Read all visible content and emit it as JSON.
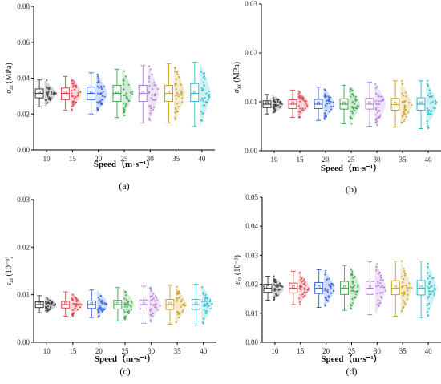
{
  "chart_data": [
    {
      "type": "box",
      "panel_label": "(a)",
      "xlabel": "Speed（m·s⁻¹）",
      "ylabel": "σzz (MPa)",
      "ylabel_symbol": "σ",
      "ylabel_sub": "zz",
      "ylabel_unit": " (MPa)",
      "categories": [
        "10",
        "15",
        "20",
        "25",
        "30",
        "35",
        "40"
      ],
      "ylim": [
        0,
        0.08
      ],
      "yticks": [
        "0.00",
        "0.02",
        "0.04",
        "0.06",
        "0.08"
      ],
      "boxes": [
        {
          "min": 0.024,
          "q1": 0.029,
          "median": 0.0315,
          "q3": 0.034,
          "max": 0.039
        },
        {
          "min": 0.022,
          "q1": 0.028,
          "median": 0.0315,
          "q3": 0.0345,
          "max": 0.041
        },
        {
          "min": 0.02,
          "q1": 0.028,
          "median": 0.0315,
          "q3": 0.035,
          "max": 0.043
        },
        {
          "min": 0.018,
          "q1": 0.027,
          "median": 0.0315,
          "q3": 0.036,
          "max": 0.045
        },
        {
          "min": 0.015,
          "q1": 0.027,
          "median": 0.0315,
          "q3": 0.036,
          "max": 0.047
        },
        {
          "min": 0.015,
          "q1": 0.027,
          "median": 0.0315,
          "q3": 0.036,
          "max": 0.048
        },
        {
          "min": 0.013,
          "q1": 0.027,
          "median": 0.0315,
          "q3": 0.037,
          "max": 0.049
        }
      ]
    },
    {
      "type": "box",
      "panel_label": "(b)",
      "xlabel": "Speed（m·s⁻¹）",
      "ylabel": "σxx (MPa)",
      "ylabel_symbol": "σ",
      "ylabel_sub": "xx",
      "ylabel_unit": " (MPa)",
      "categories": [
        "10",
        "15",
        "20",
        "25",
        "30",
        "35",
        "40"
      ],
      "ylim": [
        0,
        0.03
      ],
      "yticks": [
        "0.00",
        "0.01",
        "0.02",
        "0.03"
      ],
      "boxes": [
        {
          "min": 0.0075,
          "q1": 0.0088,
          "median": 0.0095,
          "q3": 0.0102,
          "max": 0.0115
        },
        {
          "min": 0.0068,
          "q1": 0.0086,
          "median": 0.0095,
          "q3": 0.0104,
          "max": 0.0124
        },
        {
          "min": 0.0062,
          "q1": 0.0086,
          "median": 0.0095,
          "q3": 0.0105,
          "max": 0.013
        },
        {
          "min": 0.0055,
          "q1": 0.0085,
          "median": 0.0095,
          "q3": 0.0106,
          "max": 0.0134
        },
        {
          "min": 0.005,
          "q1": 0.0085,
          "median": 0.0095,
          "q3": 0.0107,
          "max": 0.014
        },
        {
          "min": 0.0048,
          "q1": 0.0083,
          "median": 0.0094,
          "q3": 0.0107,
          "max": 0.0143
        },
        {
          "min": 0.0045,
          "q1": 0.0083,
          "median": 0.0095,
          "q3": 0.0108,
          "max": 0.0143
        }
      ]
    },
    {
      "type": "box",
      "panel_label": "(c)",
      "xlabel": "Speed（m·s⁻¹）",
      "ylabel": "εzz (10⁻³)",
      "ylabel_symbol": "ε",
      "ylabel_sub": "zz",
      "ylabel_unit": " (10⁻³)",
      "categories": [
        "10",
        "15",
        "20",
        "25",
        "30",
        "35",
        "40"
      ],
      "ylim": [
        0,
        0.03
      ],
      "yticks": [
        "0.00",
        "0.01",
        "0.02",
        "0.03"
      ],
      "boxes": [
        {
          "min": 0.0062,
          "q1": 0.0073,
          "median": 0.0079,
          "q3": 0.0085,
          "max": 0.0098
        },
        {
          "min": 0.0055,
          "q1": 0.0072,
          "median": 0.0079,
          "q3": 0.0086,
          "max": 0.0106
        },
        {
          "min": 0.0052,
          "q1": 0.0071,
          "median": 0.0079,
          "q3": 0.0087,
          "max": 0.011
        },
        {
          "min": 0.0045,
          "q1": 0.007,
          "median": 0.0079,
          "q3": 0.0088,
          "max": 0.0115
        },
        {
          "min": 0.004,
          "q1": 0.007,
          "median": 0.0079,
          "q3": 0.0089,
          "max": 0.0118
        },
        {
          "min": 0.0038,
          "q1": 0.0069,
          "median": 0.0079,
          "q3": 0.009,
          "max": 0.012
        },
        {
          "min": 0.0036,
          "q1": 0.0069,
          "median": 0.0079,
          "q3": 0.009,
          "max": 0.0122
        }
      ]
    },
    {
      "type": "box",
      "panel_label": "(d)",
      "xlabel": "Speed（m·s⁻¹）",
      "ylabel": "εzz (10⁻³)",
      "ylabel_symbol": "ε",
      "ylabel_sub": "zz",
      "ylabel_unit": " (10⁻³)",
      "categories": [
        "10",
        "15",
        "20",
        "25",
        "30",
        "35",
        "40"
      ],
      "ylim": [
        0,
        0.05
      ],
      "yticks": [
        "0.00",
        "0.01",
        "0.02",
        "0.03",
        "0.04",
        "0.05"
      ],
      "boxes": [
        {
          "min": 0.0145,
          "q1": 0.0172,
          "median": 0.0186,
          "q3": 0.02,
          "max": 0.0228
        },
        {
          "min": 0.013,
          "q1": 0.017,
          "median": 0.0186,
          "q3": 0.0204,
          "max": 0.0245
        },
        {
          "min": 0.012,
          "q1": 0.0168,
          "median": 0.0186,
          "q3": 0.0206,
          "max": 0.025
        },
        {
          "min": 0.011,
          "q1": 0.0165,
          "median": 0.0186,
          "q3": 0.021,
          "max": 0.0265
        },
        {
          "min": 0.0095,
          "q1": 0.0165,
          "median": 0.0186,
          "q3": 0.021,
          "max": 0.0278
        },
        {
          "min": 0.009,
          "q1": 0.0164,
          "median": 0.0186,
          "q3": 0.0212,
          "max": 0.028
        },
        {
          "min": 0.0085,
          "q1": 0.0163,
          "median": 0.0186,
          "q3": 0.0213,
          "max": 0.028
        }
      ]
    }
  ],
  "series_colors": [
    "#3a3a3a",
    "#e0424a",
    "#2f5fe0",
    "#3aa64a",
    "#b07ad8",
    "#c9a020",
    "#26bcc8"
  ]
}
